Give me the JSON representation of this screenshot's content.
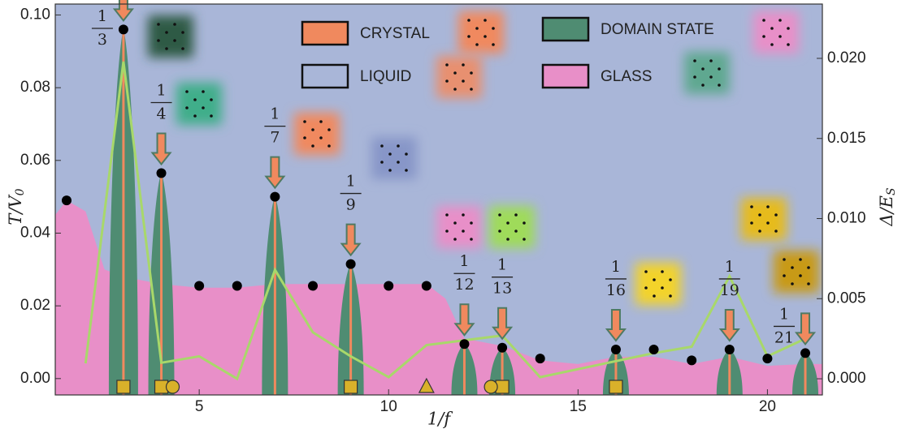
{
  "chart_data": {
    "type": "phase-diagram",
    "x_label": "1/f",
    "y_label": "T/V",
    "y_label_sub": "0",
    "y2_label": "Δ/E",
    "y2_label_sub": "S",
    "xlim": [
      1.2,
      21.45
    ],
    "xticks": [
      5,
      10,
      15,
      20
    ],
    "ylim": [
      -0.0045,
      0.103
    ],
    "yticks": [
      {
        "value": 0,
        "label": "0.00"
      },
      {
        "value": 0.02,
        "label": "0.02"
      },
      {
        "value": 0.04,
        "label": "0.04"
      },
      {
        "value": 0.06,
        "label": "0.06"
      },
      {
        "value": 0.08,
        "label": "0.08"
      },
      {
        "value": 0.1,
        "label": "0.10"
      }
    ],
    "y2lim": [
      -0.00101,
      0.02339
    ],
    "y2ticks": [
      {
        "value": 0,
        "label": "0.000"
      },
      {
        "value": 0.005,
        "label": "0.005"
      },
      {
        "value": 0.01,
        "label": "0.010"
      },
      {
        "value": 0.015,
        "label": "0.015"
      },
      {
        "value": 0.02,
        "label": "0.020"
      }
    ],
    "background_color": "#a9b6d8",
    "legend": [
      {
        "name": "CRYSTAL",
        "color": "#f0895e"
      },
      {
        "name": "LIQUID",
        "color": "#a9b6d8"
      },
      {
        "name": "DOMAIN STATE",
        "color": "#4f8c72"
      },
      {
        "name": "GLASS",
        "color": "#e88fc8"
      }
    ],
    "glass_region": {
      "color": "#e88fc8",
      "x": [
        1.2,
        1.5,
        2,
        2.5,
        3,
        4,
        5,
        6,
        7,
        8,
        9,
        10,
        11,
        11.5,
        12,
        13,
        14,
        15,
        16,
        17,
        18,
        19,
        20,
        21,
        21.45
      ],
      "values": [
        0.045,
        0.049,
        0.046,
        0.03,
        0.028,
        0.026,
        0.025,
        0.025,
        0.026,
        0.026,
        0.026,
        0.026,
        0.026,
        0.022,
        0.011,
        0.009,
        0.005,
        0.004,
        0.006,
        0.006,
        0.004,
        0.006,
        0.0035,
        0.004,
        0.004
      ]
    },
    "transition_points": {
      "color": "#000000",
      "x": [
        1.5,
        3,
        4,
        5,
        6,
        7,
        8,
        9,
        10,
        11,
        12,
        13,
        14,
        16,
        17,
        18,
        19,
        20,
        21
      ],
      "values": [
        0.049,
        0.096,
        0.0565,
        0.0255,
        0.0255,
        0.05,
        0.0255,
        0.0315,
        0.0255,
        0.0255,
        0.0095,
        0.0085,
        0.0055,
        0.008,
        0.008,
        0.005,
        0.008,
        0.0055,
        0.007
      ]
    },
    "gap_line": {
      "color": "#a8d86a",
      "axis": "y2",
      "x": [
        2,
        3,
        4,
        5,
        6,
        7,
        8,
        9,
        10,
        11,
        12,
        13,
        14,
        15,
        16,
        17,
        18,
        19,
        20,
        21
      ],
      "values": [
        0.00096,
        0.0198,
        0.001,
        0.0014,
        0.0,
        0.0068,
        0.0029,
        0.0014,
        0.0001,
        0.0021,
        0.0024,
        0.0027,
        0.0001,
        0.0006,
        0.0011,
        0.0016,
        0.002,
        0.0064,
        0.0014,
        0.0025
      ]
    },
    "crystal_peaks": [
      {
        "x": 3,
        "numerator": "1",
        "denominator": "3"
      },
      {
        "x": 4,
        "numerator": "1",
        "denominator": "4"
      },
      {
        "x": 7,
        "numerator": "1",
        "denominator": "7"
      },
      {
        "x": 9,
        "numerator": "1",
        "denominator": "9"
      },
      {
        "x": 12,
        "numerator": "1",
        "denominator": "12"
      },
      {
        "x": 13,
        "numerator": "1",
        "denominator": "13"
      },
      {
        "x": 16,
        "numerator": "1",
        "denominator": "16"
      },
      {
        "x": 19,
        "numerator": "1",
        "denominator": "19"
      },
      {
        "x": 21,
        "numerator": "1",
        "denominator": "21"
      }
    ],
    "domain_color": "#4f8c72",
    "crystal_color": "#f0895e",
    "marker_color": "#d9b12a",
    "square_markers": [
      3,
      4,
      9,
      13,
      16
    ],
    "circle_markers": [
      4.3,
      12.7
    ],
    "triangle_markers": [
      11
    ]
  }
}
